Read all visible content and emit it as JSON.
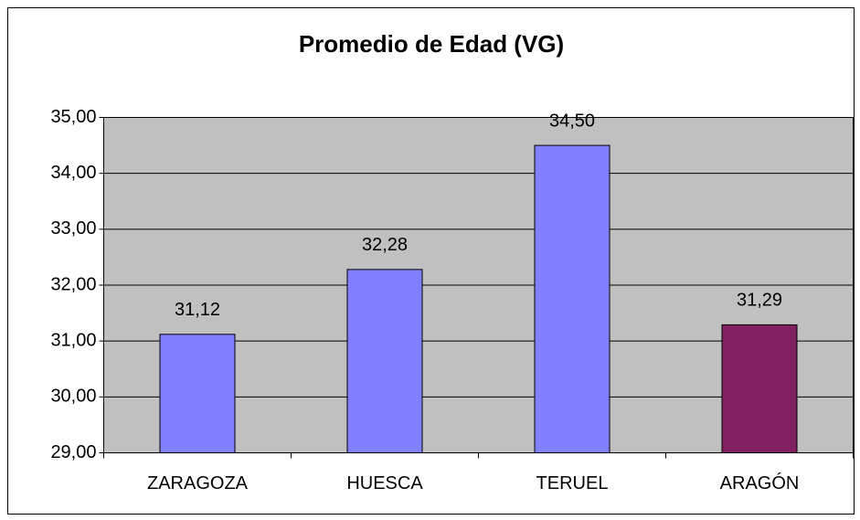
{
  "chart_data": {
    "type": "bar",
    "title": "Promedio de Edad (VG)",
    "categories": [
      "ZARAGOZA",
      "HUESCA",
      "TERUEL",
      "ARAGÓN"
    ],
    "values": [
      31.12,
      32.28,
      34.5,
      31.29
    ],
    "value_labels": [
      "31,12",
      "32,28",
      "34,50",
      "31,29"
    ],
    "colors": [
      "#8080ff",
      "#8080ff",
      "#8080ff",
      "#802060"
    ],
    "ylim": [
      29,
      35
    ],
    "yticks": [
      {
        "value": 29,
        "label": "29,00"
      },
      {
        "value": 30,
        "label": "30,00"
      },
      {
        "value": 31,
        "label": "31,00"
      },
      {
        "value": 32,
        "label": "32,00"
      },
      {
        "value": 33,
        "label": "33,00"
      },
      {
        "value": 34,
        "label": "34,00"
      },
      {
        "value": 35,
        "label": "35,00"
      }
    ],
    "grid": true
  }
}
